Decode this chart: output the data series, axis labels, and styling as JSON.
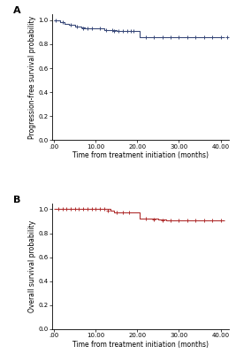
{
  "panel_A": {
    "label": "A",
    "ylabel": "Progression-free survival probability",
    "xlabel": "Time from treatment initiation (months)",
    "color": "#3a4a7a",
    "ylim": [
      0.0,
      1.05
    ],
    "xlim": [
      -0.5,
      42
    ],
    "yticks": [
      0.0,
      0.2,
      0.4,
      0.6,
      0.8,
      1.0
    ],
    "xticks": [
      0,
      10,
      20,
      30,
      40
    ],
    "xtick_labels": [
      ".00",
      "10.00",
      "20.00",
      "30.00",
      "40.00"
    ],
    "km_times": [
      0.0,
      1.0,
      1.5,
      2.5,
      3.5,
      5.0,
      6.5,
      7.5,
      8.5,
      9.5,
      10.5,
      12.0,
      13.5,
      15.0,
      16.0,
      17.0,
      18.0,
      19.5,
      20.5,
      21.5,
      23.0,
      25.0,
      27.0,
      29.0,
      31.0,
      33.0,
      35.0,
      37.0,
      39.0,
      41.0
    ],
    "km_probs": [
      1.0,
      1.0,
      0.98,
      0.97,
      0.96,
      0.95,
      0.94,
      0.93,
      0.935,
      0.935,
      0.935,
      0.92,
      0.915,
      0.91,
      0.91,
      0.91,
      0.91,
      0.91,
      0.855,
      0.855,
      0.855,
      0.855,
      0.855,
      0.855,
      0.855,
      0.855,
      0.855,
      0.855,
      0.855,
      0.855
    ],
    "censor_times": [
      0.5,
      2.0,
      4.0,
      5.5,
      7.0,
      8.0,
      9.0,
      11.0,
      12.5,
      14.0,
      14.5,
      15.5,
      16.5,
      17.5,
      18.5,
      19.0,
      22.0,
      24.0,
      26.0,
      28.0,
      30.0,
      32.0,
      34.0,
      36.0,
      38.0,
      40.0,
      41.5
    ],
    "censor_probs": [
      1.0,
      0.98,
      0.96,
      0.95,
      0.935,
      0.935,
      0.935,
      0.935,
      0.92,
      0.915,
      0.91,
      0.91,
      0.91,
      0.91,
      0.91,
      0.91,
      0.855,
      0.855,
      0.855,
      0.855,
      0.855,
      0.855,
      0.855,
      0.855,
      0.855,
      0.855,
      0.855
    ]
  },
  "panel_B": {
    "label": "B",
    "ylabel": "Overall survival probability",
    "xlabel": "Time from treatment initiation (months)",
    "color": "#b03030",
    "ylim": [
      0.0,
      1.05
    ],
    "xlim": [
      -0.5,
      42
    ],
    "yticks": [
      0.0,
      0.2,
      0.4,
      0.6,
      0.8,
      1.0
    ],
    "xticks": [
      0,
      10,
      20,
      30,
      40
    ],
    "xtick_labels": [
      ".00",
      "10.00",
      "20.00",
      "30.00",
      "40.00"
    ],
    "km_times": [
      0.0,
      0.5,
      1.5,
      2.5,
      3.5,
      4.5,
      5.5,
      6.5,
      7.5,
      8.5,
      9.5,
      10.5,
      11.5,
      12.5,
      13.5,
      14.5,
      16.0,
      17.5,
      19.0,
      20.5,
      21.5,
      23.0,
      25.0,
      27.0,
      29.0,
      31.0,
      33.0,
      35.0,
      37.0,
      39.0,
      41.0
    ],
    "km_probs": [
      1.0,
      1.0,
      1.0,
      1.0,
      1.0,
      1.0,
      1.0,
      1.0,
      1.0,
      1.0,
      1.0,
      1.0,
      1.0,
      1.0,
      0.985,
      0.975,
      0.97,
      0.97,
      0.97,
      0.925,
      0.92,
      0.92,
      0.915,
      0.91,
      0.91,
      0.91,
      0.91,
      0.91,
      0.91,
      0.91,
      0.91
    ],
    "censor_times": [
      1.0,
      2.0,
      3.0,
      4.0,
      5.0,
      6.0,
      7.0,
      8.0,
      9.0,
      10.0,
      11.0,
      12.0,
      13.0,
      15.0,
      16.5,
      18.0,
      22.0,
      24.0,
      26.0,
      28.0,
      30.0,
      32.0,
      34.0,
      36.0,
      38.0,
      40.0
    ],
    "censor_probs": [
      1.0,
      1.0,
      1.0,
      1.0,
      1.0,
      1.0,
      1.0,
      1.0,
      1.0,
      1.0,
      1.0,
      1.0,
      0.985,
      0.975,
      0.97,
      0.97,
      0.92,
      0.915,
      0.91,
      0.91,
      0.91,
      0.91,
      0.91,
      0.91,
      0.91,
      0.91
    ]
  },
  "bg_color": "#ffffff",
  "tick_fontsize": 5,
  "label_fontsize": 5.5,
  "panel_label_fontsize": 8
}
